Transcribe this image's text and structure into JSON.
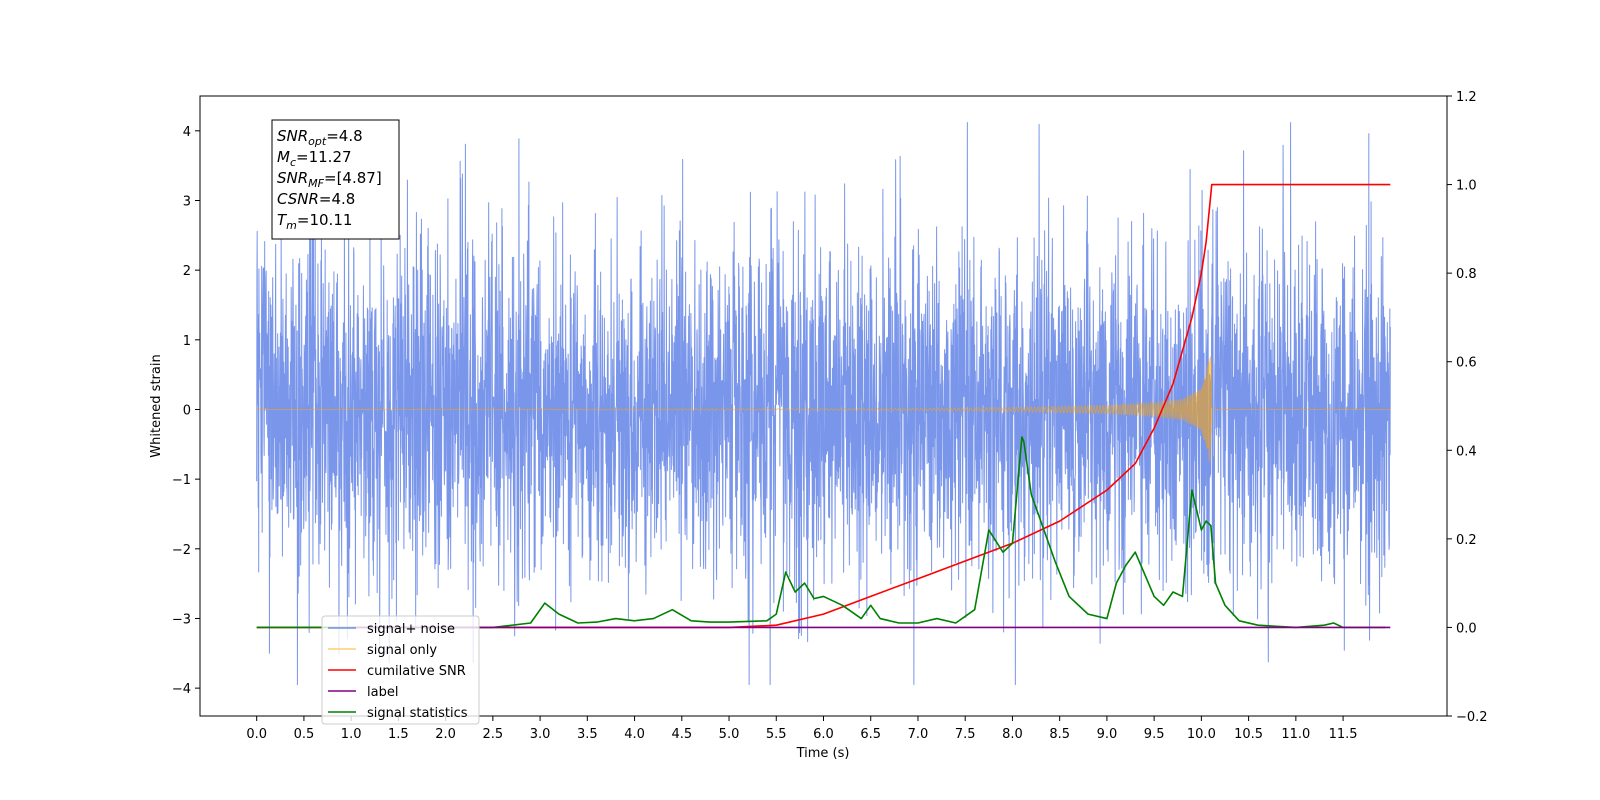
{
  "chart_data": {
    "type": "line",
    "xlabel": "Time (s)",
    "ylabel_left": "Whitened strain",
    "ylabel_right": "",
    "xlim": [
      -0.6,
      12.6
    ],
    "ylim_left": [
      -4.4,
      4.5
    ],
    "ylim_right": [
      -0.2,
      1.2
    ],
    "x_ticks": [
      0.0,
      0.5,
      1.0,
      1.5,
      2.0,
      2.5,
      3.0,
      3.5,
      4.0,
      4.5,
      5.0,
      5.5,
      6.0,
      6.5,
      7.0,
      7.5,
      8.0,
      8.5,
      9.0,
      9.5,
      10.0,
      10.5,
      11.0,
      11.5
    ],
    "x_tick_labels": [
      "0.0",
      "0.5",
      "1.0",
      "1.5",
      "2.0",
      "2.5",
      "3.0",
      "3.5",
      "4.0",
      "4.5",
      "5.0",
      "5.5",
      "6.0",
      "6.5",
      "7.0",
      "7.5",
      "8.0",
      "8.5",
      "9.0",
      "9.5",
      "10.0",
      "10.5",
      "11.0",
      "11.5"
    ],
    "y_ticks_left": [
      -4,
      -3,
      -2,
      -1,
      0,
      1,
      2,
      3,
      4
    ],
    "y_tick_labels_left": [
      "−4",
      "−3",
      "−2",
      "−1",
      "0",
      "1",
      "2",
      "3",
      "4"
    ],
    "y_ticks_right": [
      -0.2,
      0.0,
      0.2,
      0.4,
      0.6,
      0.8,
      1.0,
      1.2
    ],
    "y_tick_labels_right": [
      "−0.2",
      "0.0",
      "0.2",
      "0.4",
      "0.6",
      "0.8",
      "1.0",
      "1.2"
    ],
    "legend_position": "lower-left",
    "grid": false,
    "annotation": {
      "lines": [
        {
          "main": "SNR",
          "sub": "opt",
          "rest": "=4.8"
        },
        {
          "main": "M",
          "sub": "c",
          "rest": "=11.27"
        },
        {
          "main": "SNR",
          "sub": "MF",
          "rest": "=[4.87]"
        },
        {
          "main": "CSNR",
          "sub": "",
          "rest": "=4.8"
        },
        {
          "main": "T",
          "sub": "m",
          "rest": "=10.11"
        }
      ]
    },
    "series": [
      {
        "name": "signal+ noise",
        "axis": "left",
        "color": "#4169E1",
        "kind": "noise",
        "x_range": [
          0.0,
          12.0
        ],
        "std": 1.2,
        "approx_min": -3.95,
        "approx_max": 4.12
      },
      {
        "name": "signal only",
        "axis": "left",
        "color": "#FFA500",
        "kind": "chirp",
        "x_range": [
          0.0,
          12.0
        ],
        "merger_time": 10.11,
        "peak_amplitude": 0.85,
        "amplitude_points": [
          [
            0.0,
            0.0
          ],
          [
            6.0,
            0.01
          ],
          [
            7.0,
            0.015
          ],
          [
            8.0,
            0.03
          ],
          [
            9.0,
            0.06
          ],
          [
            9.5,
            0.1
          ],
          [
            9.8,
            0.15
          ],
          [
            10.0,
            0.3
          ],
          [
            10.11,
            0.85
          ],
          [
            10.12,
            0.0
          ],
          [
            12.0,
            0.0
          ]
        ]
      },
      {
        "name": "cumilative SNR",
        "axis": "right",
        "color": "#FF0000",
        "x": [
          0.0,
          5.0,
          5.5,
          6.0,
          6.5,
          7.0,
          7.5,
          8.0,
          8.5,
          9.0,
          9.3,
          9.5,
          9.7,
          9.9,
          10.0,
          10.05,
          10.11,
          10.12,
          12.0
        ],
        "y": [
          0.0,
          0.0,
          0.005,
          0.03,
          0.07,
          0.11,
          0.15,
          0.19,
          0.24,
          0.31,
          0.37,
          0.45,
          0.55,
          0.7,
          0.8,
          0.87,
          1.0,
          1.0,
          1.0
        ]
      },
      {
        "name": "label",
        "axis": "right",
        "color": "#800080",
        "x": [
          1.0,
          12.0
        ],
        "y": [
          0.0,
          0.0
        ]
      },
      {
        "name": "signal statistics",
        "axis": "right",
        "color": "#008000",
        "x": [
          0.0,
          2.5,
          2.9,
          3.05,
          3.2,
          3.4,
          3.6,
          3.8,
          4.0,
          4.2,
          4.4,
          4.6,
          4.8,
          5.0,
          5.4,
          5.5,
          5.6,
          5.7,
          5.8,
          5.9,
          6.0,
          6.2,
          6.4,
          6.5,
          6.6,
          6.8,
          7.0,
          7.2,
          7.4,
          7.6,
          7.75,
          7.9,
          8.0,
          8.1,
          8.12,
          8.2,
          8.3,
          8.45,
          8.6,
          8.8,
          9.0,
          9.1,
          9.2,
          9.3,
          9.4,
          9.5,
          9.6,
          9.7,
          9.8,
          9.9,
          10.0,
          10.05,
          10.1,
          10.15,
          10.25,
          10.4,
          10.6,
          11.0,
          11.3,
          11.4,
          11.5,
          11.8,
          11.95
        ],
        "y": [
          0.0,
          0.0,
          0.01,
          0.055,
          0.03,
          0.01,
          0.012,
          0.02,
          0.015,
          0.02,
          0.04,
          0.015,
          0.012,
          0.012,
          0.015,
          0.03,
          0.125,
          0.08,
          0.1,
          0.065,
          0.07,
          0.05,
          0.02,
          0.05,
          0.02,
          0.01,
          0.01,
          0.02,
          0.01,
          0.04,
          0.22,
          0.17,
          0.19,
          0.43,
          0.42,
          0.3,
          0.24,
          0.15,
          0.07,
          0.03,
          0.02,
          0.1,
          0.14,
          0.17,
          0.12,
          0.07,
          0.05,
          0.08,
          0.07,
          0.31,
          0.22,
          0.24,
          0.23,
          0.1,
          0.05,
          0.015,
          0.005,
          0.0,
          0.005,
          0.01,
          0.0,
          0.0,
          0.0
        ]
      }
    ]
  }
}
